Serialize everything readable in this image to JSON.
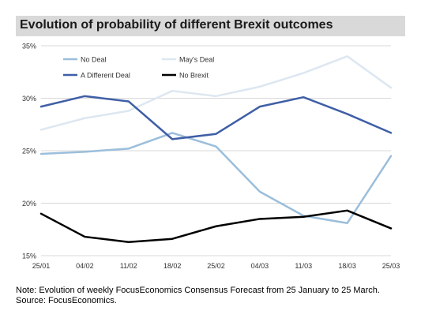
{
  "title": "Evolution of probability of different Brexit outcomes",
  "note_line1": "Note: Evolution of weekly FocusEconomics Consensus Forecast from 25 January to 25 March.",
  "note_line2": "Source: FocusEconomics.",
  "chart_data": {
    "type": "line",
    "title": "Evolution of probability of different Brexit outcomes",
    "xlabel": "",
    "ylabel": "",
    "categories": [
      "25/01",
      "04/02",
      "11/02",
      "18/02",
      "25/02",
      "04/03",
      "11/03",
      "18/03",
      "25/03"
    ],
    "ylim": [
      15,
      35
    ],
    "yticks": [
      15,
      20,
      25,
      30,
      35
    ],
    "ytick_labels": [
      "15%",
      "20%",
      "25%",
      "30%",
      "35%"
    ],
    "grid": true,
    "legend_placement": "top-left",
    "series": [
      {
        "name": "No Deal",
        "color": "#9bbedb",
        "values": [
          24.7,
          24.9,
          25.2,
          26.7,
          25.4,
          21.1,
          18.8,
          18.1,
          24.5
        ]
      },
      {
        "name": "May's Deal",
        "color": "#dde7f1",
        "values": [
          27.0,
          28.1,
          28.8,
          30.7,
          30.2,
          31.1,
          32.4,
          34.0,
          31.0
        ]
      },
      {
        "name": "A Different Deal",
        "color": "#3f5fa6",
        "values": [
          29.2,
          30.2,
          29.7,
          26.1,
          26.6,
          29.2,
          30.1,
          28.5,
          26.7
        ]
      },
      {
        "name": "No Brexit",
        "color": "#000000",
        "values": [
          19.0,
          16.8,
          16.3,
          16.6,
          17.8,
          18.5,
          18.7,
          19.3,
          17.6
        ]
      }
    ]
  }
}
